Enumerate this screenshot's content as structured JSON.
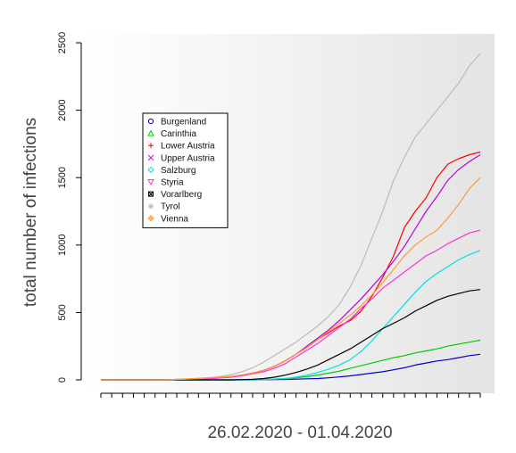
{
  "chart_data": {
    "type": "line",
    "title": "",
    "xlabel": "26.02.2020 - 01.04.2020",
    "ylabel": "total number of infections",
    "xlim": [
      1,
      36
    ],
    "ylim": [
      0,
      2500
    ],
    "yticks": [
      0,
      500,
      1000,
      1500,
      2000,
      2500
    ],
    "grid": false,
    "legend_placement": "top-left",
    "x": [
      1,
      2,
      3,
      4,
      5,
      6,
      7,
      8,
      9,
      10,
      11,
      12,
      13,
      14,
      15,
      16,
      17,
      18,
      19,
      20,
      21,
      22,
      23,
      24,
      25,
      26,
      27,
      28,
      29,
      30,
      31,
      32,
      33,
      34,
      35,
      36
    ],
    "series": [
      {
        "name": "Burgenland",
        "color": "#0000cc",
        "marker": "circle",
        "values": [
          0,
          0,
          0,
          0,
          0,
          0,
          0,
          0,
          0,
          0,
          0,
          0,
          0,
          0,
          0,
          1,
          2,
          3,
          5,
          8,
          10,
          15,
          22,
          30,
          40,
          50,
          60,
          75,
          90,
          110,
          125,
          140,
          150,
          165,
          180,
          190
        ]
      },
      {
        "name": "Carinthia",
        "color": "#00cc00",
        "marker": "triangle-up",
        "values": [
          0,
          0,
          0,
          0,
          0,
          0,
          0,
          0,
          0,
          0,
          0,
          0,
          0,
          1,
          2,
          4,
          6,
          10,
          16,
          24,
          36,
          50,
          65,
          85,
          105,
          125,
          145,
          165,
          180,
          200,
          215,
          230,
          250,
          265,
          280,
          295
        ]
      },
      {
        "name": "Lower Austria",
        "color": "#ff0000",
        "marker": "plus",
        "values": [
          0,
          0,
          0,
          0,
          0,
          0,
          0,
          3,
          5,
          8,
          12,
          18,
          25,
          35,
          50,
          70,
          100,
          140,
          190,
          240,
          300,
          350,
          400,
          440,
          510,
          620,
          760,
          920,
          1130,
          1250,
          1350,
          1500,
          1600,
          1640,
          1670,
          1690
        ]
      },
      {
        "name": "Upper Austria",
        "color": "#bb00dd",
        "marker": "cross",
        "values": [
          0,
          0,
          0,
          0,
          0,
          0,
          0,
          2,
          4,
          6,
          10,
          16,
          24,
          35,
          50,
          70,
          100,
          140,
          190,
          250,
          310,
          370,
          440,
          520,
          600,
          690,
          780,
          880,
          990,
          1120,
          1250,
          1360,
          1480,
          1560,
          1620,
          1670
        ]
      },
      {
        "name": "Salzburg",
        "color": "#00e0e0",
        "marker": "diamond",
        "values": [
          0,
          0,
          0,
          0,
          0,
          0,
          0,
          0,
          0,
          0,
          0,
          0,
          0,
          0,
          1,
          2,
          5,
          10,
          20,
          35,
          55,
          80,
          110,
          150,
          210,
          290,
          380,
          470,
          560,
          650,
          730,
          790,
          840,
          890,
          930,
          960
        ]
      },
      {
        "name": "Styria",
        "color": "#ff33cc",
        "marker": "triangle-down",
        "values": [
          0,
          0,
          0,
          0,
          0,
          0,
          0,
          2,
          4,
          6,
          9,
          14,
          20,
          30,
          45,
          60,
          85,
          120,
          170,
          220,
          270,
          330,
          390,
          450,
          530,
          600,
          680,
          740,
          800,
          860,
          920,
          960,
          1010,
          1050,
          1090,
          1110
        ]
      },
      {
        "name": "Vorarlberg",
        "color": "#000000",
        "marker": "square-x",
        "values": [
          0,
          0,
          0,
          0,
          0,
          0,
          0,
          0,
          0,
          0,
          0,
          0,
          0,
          2,
          4,
          10,
          20,
          35,
          55,
          80,
          110,
          150,
          190,
          230,
          280,
          330,
          380,
          420,
          460,
          510,
          550,
          590,
          620,
          640,
          660,
          670
        ]
      },
      {
        "name": "Tyrol",
        "color": "#bbbbbb",
        "marker": "asterisk",
        "values": [
          0,
          0,
          0,
          0,
          0,
          0,
          0,
          3,
          6,
          10,
          16,
          25,
          40,
          60,
          90,
          130,
          180,
          230,
          280,
          340,
          400,
          470,
          560,
          690,
          850,
          1050,
          1250,
          1480,
          1650,
          1800,
          1900,
          2000,
          2100,
          2200,
          2330,
          2420
        ]
      },
      {
        "name": "Vienna",
        "color": "#ff9933",
        "marker": "diamond-plus",
        "values": [
          0,
          0,
          0,
          0,
          0,
          0,
          0,
          4,
          8,
          12,
          16,
          20,
          26,
          35,
          50,
          70,
          100,
          140,
          190,
          240,
          300,
          360,
          420,
          480,
          550,
          630,
          720,
          820,
          920,
          1000,
          1060,
          1110,
          1200,
          1300,
          1420,
          1500
        ]
      }
    ]
  }
}
